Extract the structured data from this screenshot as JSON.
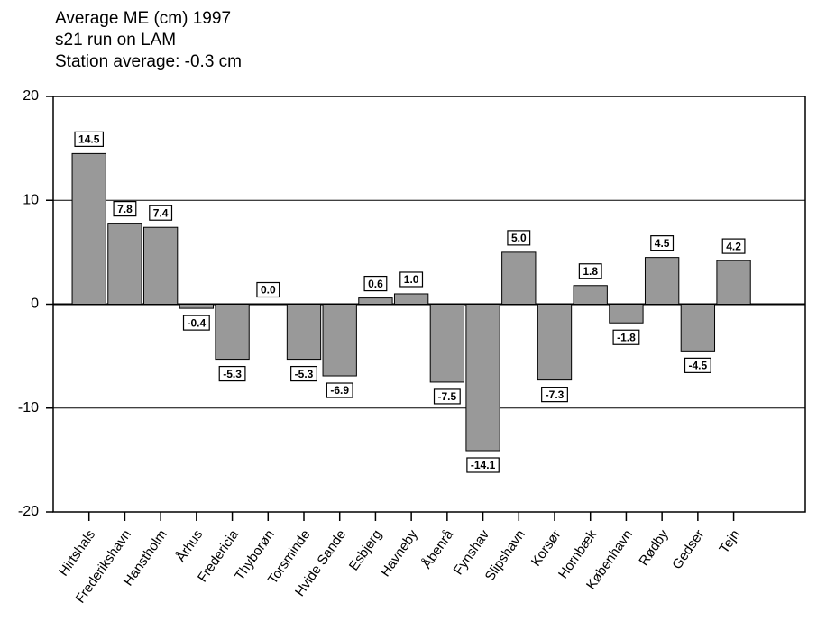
{
  "chart_data": {
    "type": "bar",
    "title": [
      "Average ME (cm) 1997",
      "s21 run on LAM",
      "Station average: -0.3 cm"
    ],
    "categories": [
      "Hirtshals",
      "Frederikshavn",
      "Hanstholm",
      "Århus",
      "Fredericia",
      "Thyborøn",
      "Torsminde",
      "Hvide Sande",
      "Esbjerg",
      "Havneby",
      "Åbenrå",
      "Fynshav",
      "Slipshavn",
      "Korsør",
      "Hornbæk",
      "København",
      "Rødby",
      "Gedser",
      "Tejn"
    ],
    "values": [
      14.5,
      7.8,
      7.4,
      -0.4,
      -5.3,
      0,
      -5.3,
      -6.9,
      0.6,
      1,
      -7.5,
      -14.1,
      5,
      -7.3,
      1.8,
      -1.8,
      4.5,
      -4.5,
      4.2
    ],
    "value_labels": [
      "14.5",
      "7.8",
      "7.4",
      "-0.4",
      "-5.3",
      "0.0",
      "-5.3",
      "-6.9",
      "0.6",
      "1.0",
      "-7.5",
      "-14.1",
      "5.0",
      "-7.3",
      "1.8",
      "-1.8",
      "4.5",
      "-4.5",
      "4.2"
    ],
    "color": "#999999",
    "ylim": [
      -20,
      20
    ],
    "yticks": [
      -20,
      -10,
      0,
      10,
      20
    ],
    "grid": true
  }
}
